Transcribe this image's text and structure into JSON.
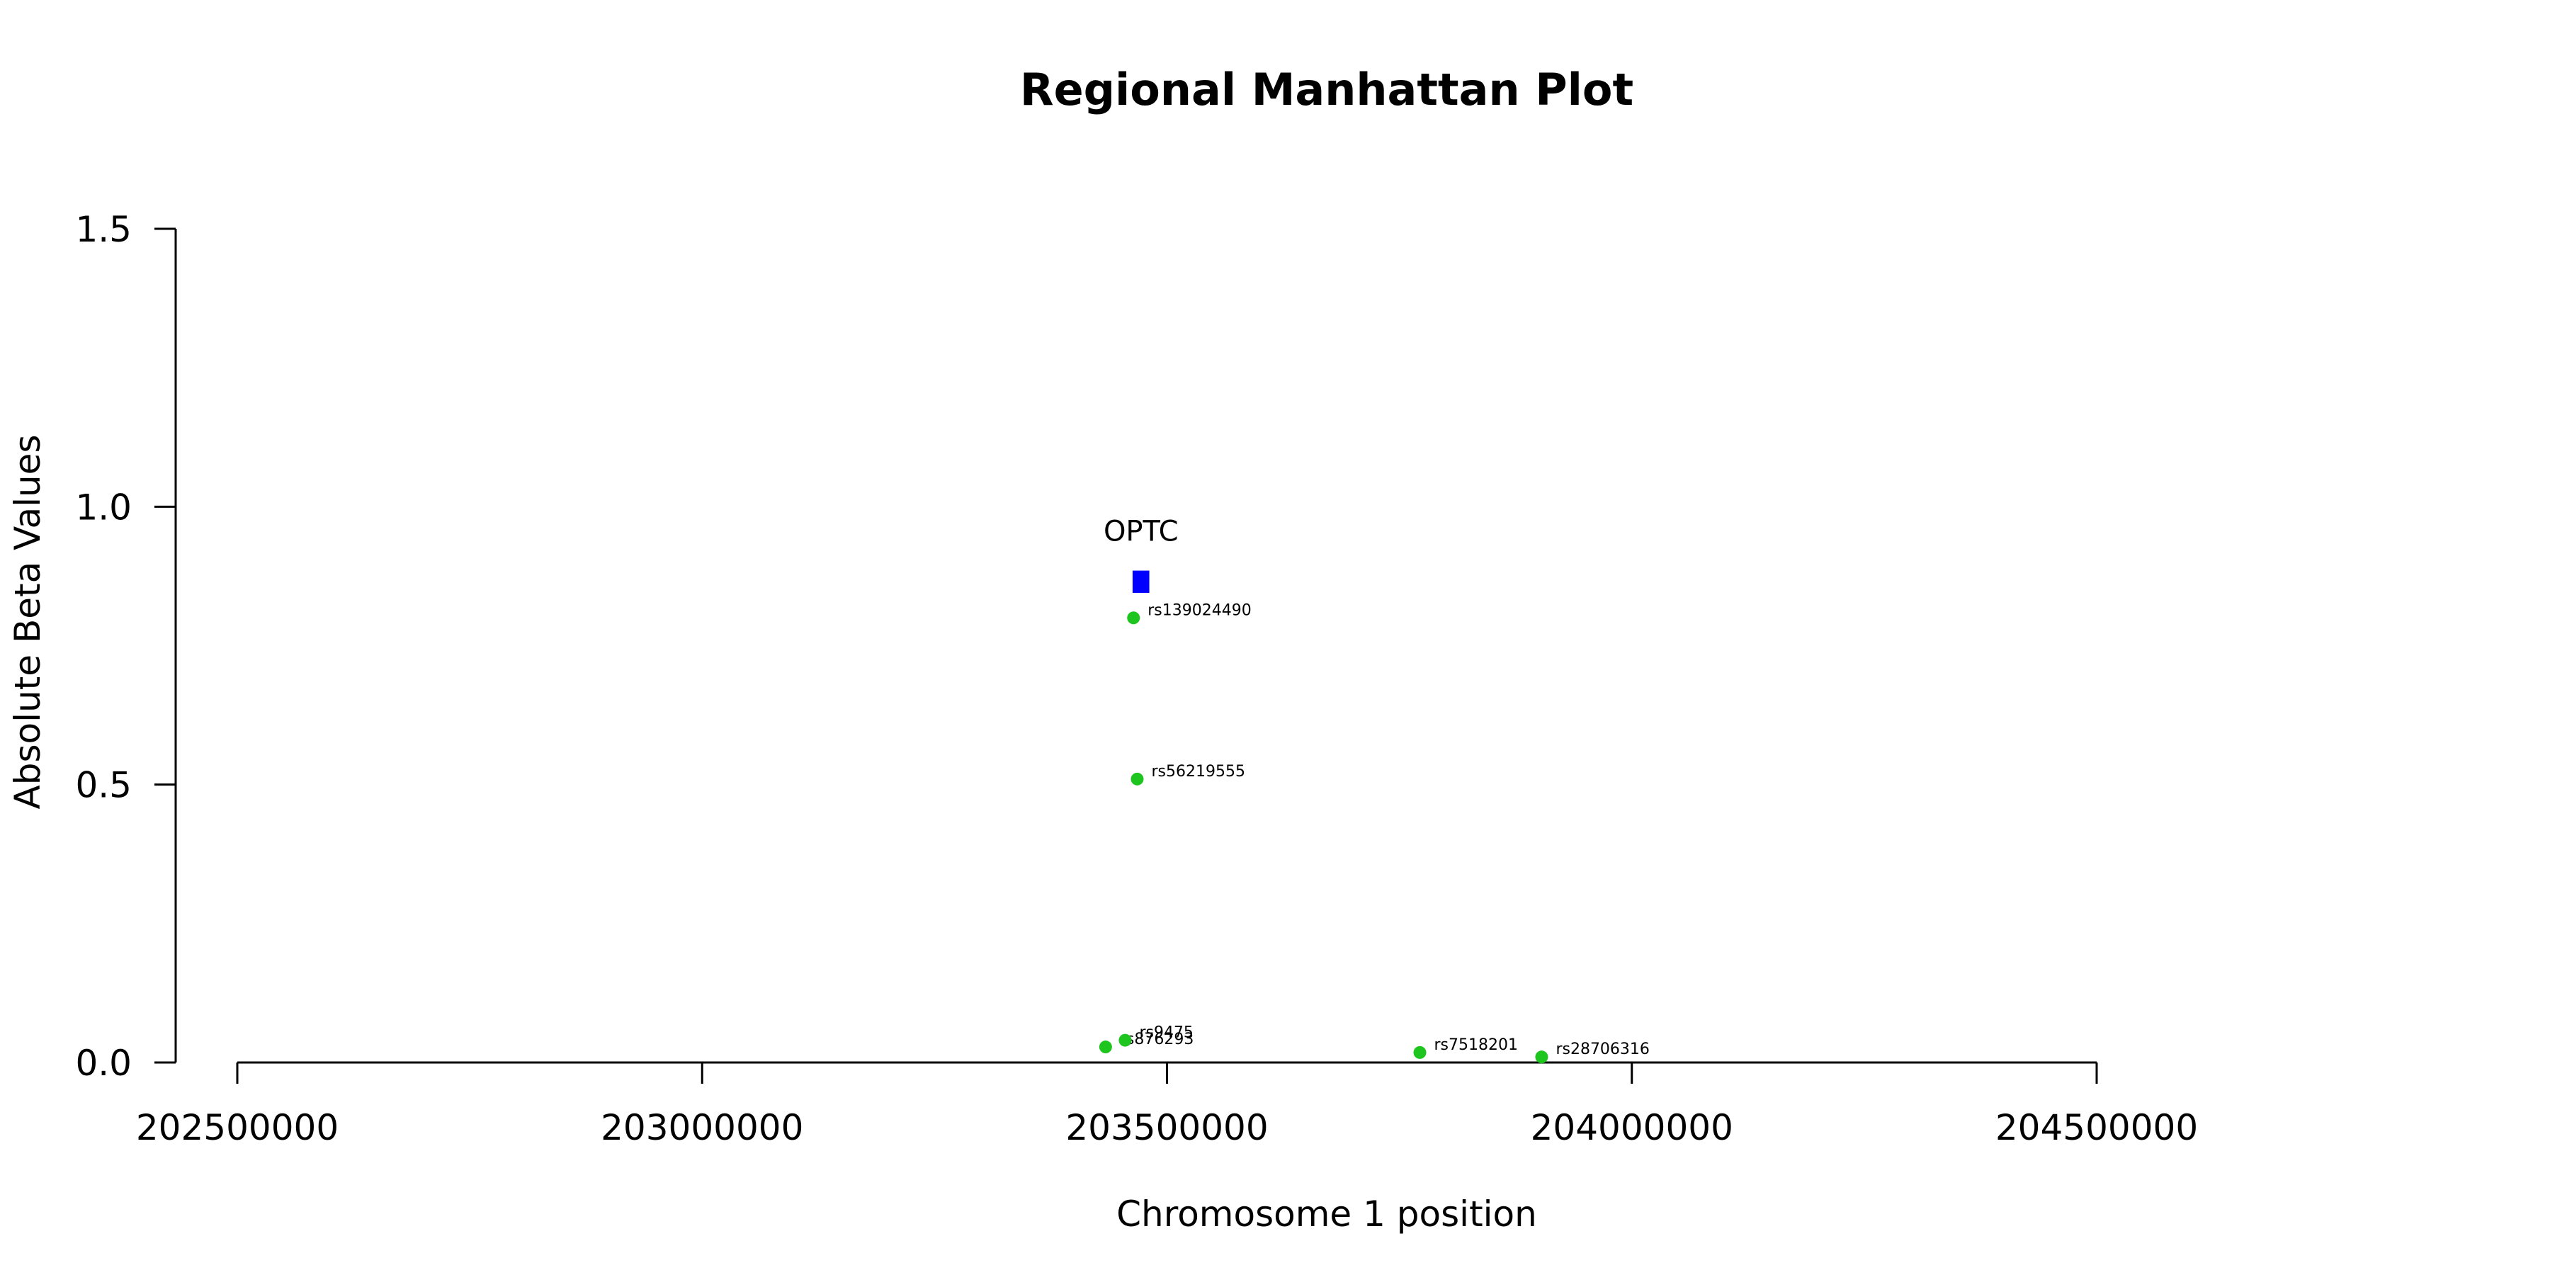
{
  "chart_data": {
    "type": "scatter",
    "title": "Regional Manhattan Plot",
    "xlabel": "Chromosome 1 position",
    "ylabel": "Absolute Beta Values",
    "xlim": [
      202500000,
      204500000
    ],
    "ylim": [
      0,
      1.5
    ],
    "x_ticks": [
      202500000,
      203000000,
      203500000,
      204000000,
      204500000
    ],
    "x_tick_labels": [
      "202500000",
      "203000000",
      "203500000",
      "204000000",
      "204500000"
    ],
    "y_ticks": [
      0,
      0.5,
      1.0,
      1.5
    ],
    "y_tick_labels": [
      "0.0",
      "0.5",
      "1.0",
      "1.5"
    ],
    "grid": false,
    "point_color": "#1ec51e",
    "gene_color": "#0000ff",
    "genes": [
      {
        "name": "OPTC",
        "start": 203463000,
        "end": 203481000,
        "y_low": 0.845,
        "y_high": 0.885
      }
    ],
    "series": [
      {
        "points": [
          {
            "label": "rs139024490",
            "x": 203464000,
            "y": 0.8
          },
          {
            "label": "rs56219555",
            "x": 203468000,
            "y": 0.51
          },
          {
            "label": "rs876293",
            "x": 203434000,
            "y": 0.028
          },
          {
            "label": "rs9475",
            "x": 203455000,
            "y": 0.04
          },
          {
            "label": "rs7518201",
            "x": 203772000,
            "y": 0.018
          },
          {
            "label": "rs28706316",
            "x": 203903000,
            "y": 0.01
          }
        ]
      }
    ]
  }
}
